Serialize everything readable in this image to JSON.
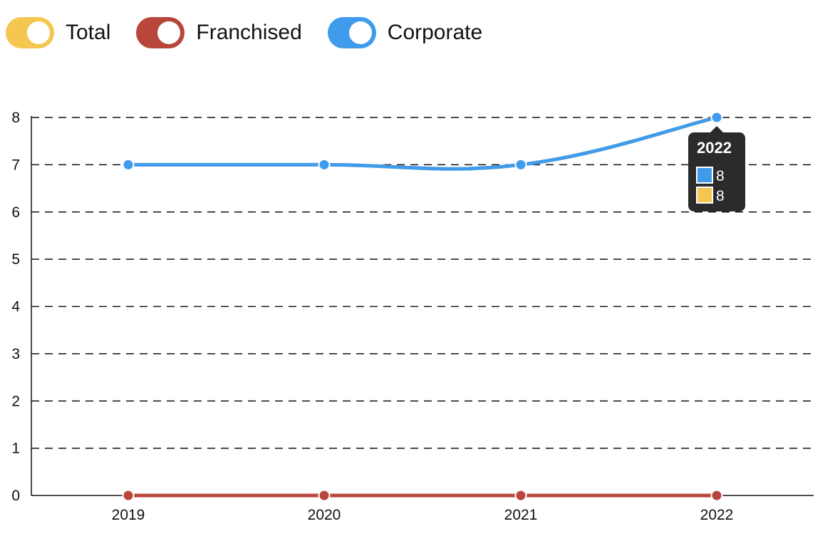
{
  "legend": [
    {
      "name": "Total",
      "color": "#F5C650"
    },
    {
      "name": "Franchised",
      "color": "#B8463A"
    },
    {
      "name": "Corporate",
      "color": "#3F9BEB"
    }
  ],
  "chart_data": {
    "type": "line",
    "x": [
      "2019",
      "2020",
      "2021",
      "2022"
    ],
    "ylim": [
      0,
      8
    ],
    "yticks": [
      0,
      1,
      2,
      3,
      4,
      5,
      6,
      7,
      8
    ],
    "grid": "horizontal-dashed",
    "legend_position": "top-left",
    "series": [
      {
        "name": "Total",
        "color": "#F5C650",
        "values": [
          7,
          7,
          7,
          8
        ],
        "hidden_behind": "Corporate"
      },
      {
        "name": "Franchised",
        "color": "#B8463A",
        "values": [
          0,
          0,
          0,
          0
        ]
      },
      {
        "name": "Corporate",
        "color": "#3F9BEB",
        "values": [
          7,
          7,
          7,
          8
        ]
      }
    ]
  },
  "tooltip": {
    "title": "2022",
    "rows": [
      {
        "color": "#3F9BEB",
        "value": "8"
      },
      {
        "color": "#F5C650",
        "value": "8"
      }
    ]
  }
}
